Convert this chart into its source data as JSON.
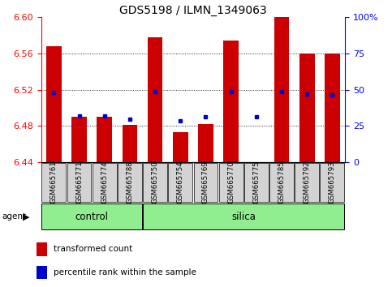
{
  "title": "GDS5198 / ILMN_1349063",
  "samples": [
    "GSM665761",
    "GSM665771",
    "GSM665774",
    "GSM665788",
    "GSM665750",
    "GSM665754",
    "GSM665769",
    "GSM665770",
    "GSM665775",
    "GSM665785",
    "GSM665792",
    "GSM665793"
  ],
  "groups": [
    "control",
    "control",
    "control",
    "control",
    "silica",
    "silica",
    "silica",
    "silica",
    "silica",
    "silica",
    "silica",
    "silica"
  ],
  "red_values": [
    6.568,
    6.49,
    6.49,
    6.481,
    6.578,
    6.473,
    6.482,
    6.574,
    6.44,
    6.6,
    6.56,
    6.56
  ],
  "blue_values": [
    6.517,
    6.491,
    6.491,
    6.487,
    6.518,
    6.486,
    6.49,
    6.518,
    6.49,
    6.518,
    6.515,
    6.514
  ],
  "ymin": 6.44,
  "ymax": 6.6,
  "yticks": [
    6.44,
    6.48,
    6.52,
    6.56,
    6.6
  ],
  "right_yticks": [
    0,
    25,
    50,
    75,
    100
  ],
  "bar_color": "#cc0000",
  "dot_color": "#0000cc",
  "label_bg_color": "#d3d3d3",
  "group_color": "#90ee90",
  "legend_red": "transformed count",
  "legend_blue": "percentile rank within the sample",
  "groups_info": [
    {
      "label": "control",
      "start": 0,
      "end": 3
    },
    {
      "label": "silica",
      "start": 4,
      "end": 11
    }
  ]
}
